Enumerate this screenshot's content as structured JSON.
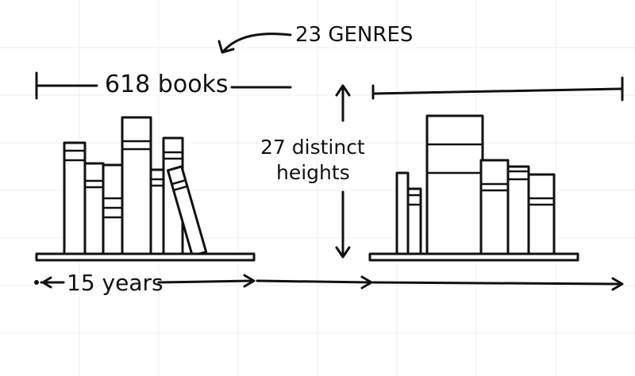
{
  "annotations": {
    "genres": "23 GENRES",
    "books": "618 books",
    "heights_line1": "27 distinct",
    "heights_line2": "heights",
    "years": "15 years"
  },
  "colors": {
    "ink": "#111111",
    "paper": "#ffffff",
    "grid": "#f1f1f1"
  }
}
